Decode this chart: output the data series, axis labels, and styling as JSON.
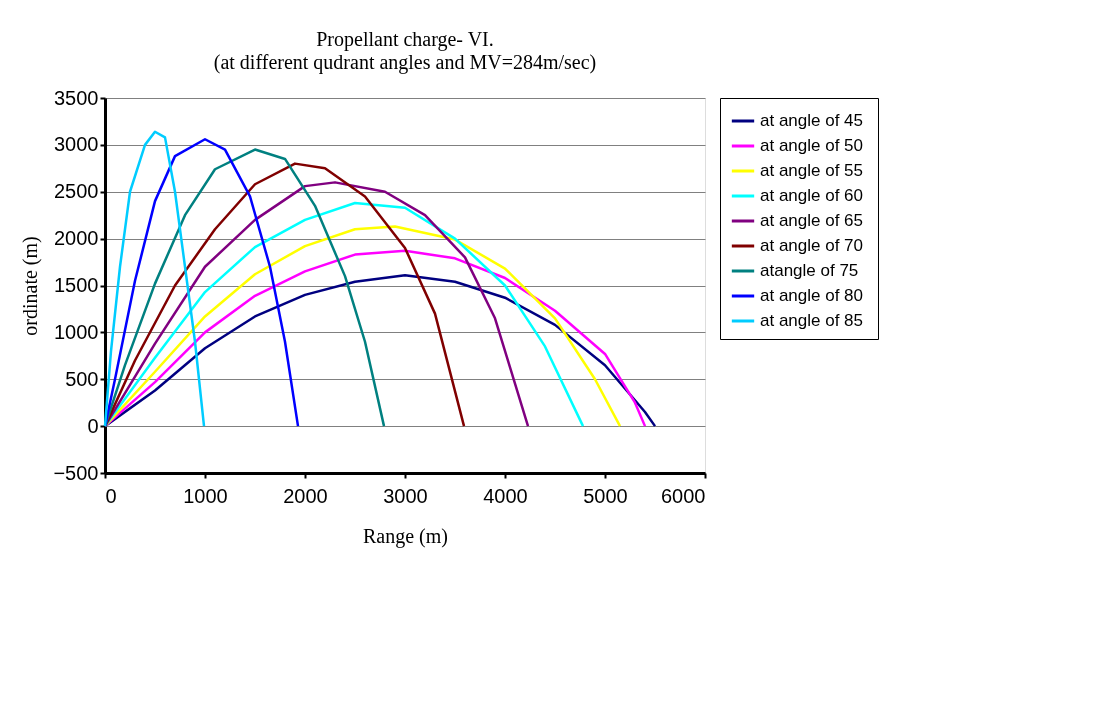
{
  "chart_data": {
    "type": "line",
    "title": "Propellant charge- VI.",
    "subtitle": "(at different qudrant angles and MV=284m/sec)",
    "xlabel": "Range (m)",
    "ylabel": "ordinate (m)",
    "xlim": [
      0,
      6000
    ],
    "xticks": [
      0,
      1000,
      2000,
      3000,
      4000,
      5000,
      6000
    ],
    "ylim": [
      -500,
      3500
    ],
    "yticks": [
      -500,
      0,
      500,
      1000,
      1500,
      2000,
      2500,
      3000,
      3500
    ],
    "grid": "y",
    "legend": "right",
    "marker": "none",
    "line_style": "solid",
    "series": [
      {
        "name": "at  angle of 45",
        "color": "#000080",
        "x": [
          0,
          500,
          1000,
          1500,
          2000,
          2500,
          3000,
          3500,
          4000,
          4500,
          5000,
          5400,
          5500
        ],
        "values": [
          0,
          380,
          830,
          1170,
          1400,
          1540,
          1610,
          1540,
          1370,
          1080,
          650,
          150,
          0
        ]
      },
      {
        "name": "at  angle of 50",
        "color": "#ff00ff",
        "x": [
          0,
          500,
          1000,
          1500,
          2000,
          2500,
          3000,
          3500,
          4000,
          4500,
          5000,
          5300,
          5400
        ],
        "values": [
          0,
          470,
          1000,
          1390,
          1650,
          1830,
          1870,
          1790,
          1580,
          1230,
          770,
          250,
          0
        ]
      },
      {
        "name": "at angle of 55",
        "color": "#ffff00",
        "x": [
          0,
          500,
          1000,
          1500,
          2000,
          2500,
          2900,
          3500,
          4000,
          4500,
          4900,
          5150
        ],
        "values": [
          0,
          580,
          1170,
          1620,
          1920,
          2100,
          2130,
          1990,
          1680,
          1150,
          500,
          0
        ]
      },
      {
        "name": "at angle of 60",
        "color": "#00ffff",
        "x": [
          0,
          500,
          1000,
          1500,
          2000,
          2500,
          3000,
          3500,
          4000,
          4400,
          4780
        ],
        "values": [
          0,
          730,
          1430,
          1910,
          2200,
          2380,
          2330,
          2000,
          1500,
          850,
          0
        ]
      },
      {
        "name": "at angle of 65",
        "color": "#800080",
        "x": [
          0,
          500,
          1000,
          1500,
          2000,
          2300,
          2800,
          3200,
          3600,
          3900,
          4230
        ],
        "values": [
          0,
          880,
          1700,
          2200,
          2560,
          2600,
          2500,
          2250,
          1800,
          1150,
          0
        ]
      },
      {
        "name": "at angle of 70",
        "color": "#800000",
        "x": [
          0,
          300,
          700,
          1100,
          1500,
          1900,
          2200,
          2600,
          3000,
          3300,
          3590
        ],
        "values": [
          0,
          700,
          1500,
          2100,
          2580,
          2800,
          2750,
          2450,
          1900,
          1200,
          0
        ]
      },
      {
        "name": "atangle of 75",
        "color": "#008080",
        "x": [
          0,
          200,
          500,
          800,
          1100,
          1500,
          1800,
          2100,
          2400,
          2600,
          2790
        ],
        "values": [
          0,
          650,
          1520,
          2250,
          2740,
          2950,
          2850,
          2350,
          1600,
          900,
          0
        ]
      },
      {
        "name": "at angle of 80",
        "color": "#0000ff",
        "x": [
          0,
          100,
          300,
          500,
          700,
          1000,
          1200,
          1450,
          1650,
          1800,
          1930
        ],
        "values": [
          0,
          500,
          1550,
          2400,
          2880,
          3060,
          2950,
          2450,
          1700,
          900,
          0
        ]
      },
      {
        "name": "at angle of 85",
        "color": "#00ccff",
        "x": [
          0,
          60,
          150,
          250,
          400,
          500,
          600,
          700,
          800,
          900,
          990
        ],
        "values": [
          0,
          800,
          1700,
          2500,
          3000,
          3140,
          3080,
          2500,
          1700,
          900,
          0
        ]
      }
    ]
  }
}
